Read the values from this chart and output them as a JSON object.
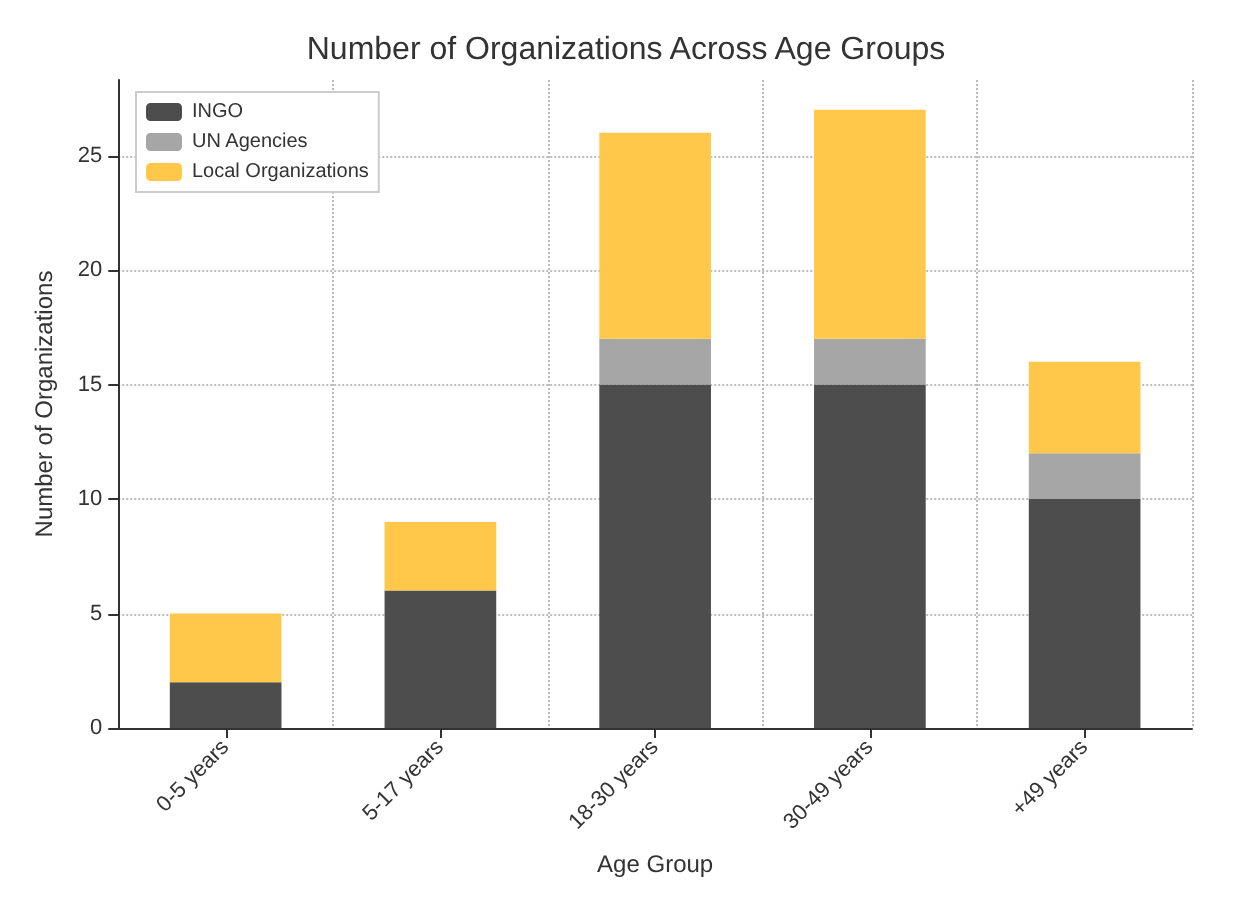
{
  "chart_data": {
    "type": "bar",
    "title": "Number of Organizations Across Age Groups",
    "xlabel": "Age Group",
    "ylabel": "Number of Organizations",
    "categories": [
      "0-5 years",
      "5-17 years",
      "18-30 years",
      "30-49 years",
      "+49 years"
    ],
    "stacked": true,
    "series": [
      {
        "name": "INGO",
        "color": "#4d4d4d",
        "values": [
          2,
          6,
          15,
          15,
          10
        ]
      },
      {
        "name": "UN Agencies",
        "color": "#a6a6a6",
        "values": [
          0,
          0,
          2,
          2,
          2
        ]
      },
      {
        "name": "Local Organizations",
        "color": "#ffc84a",
        "values": [
          3,
          3,
          9,
          10,
          4
        ]
      }
    ],
    "ylim": [
      0,
      28.3
    ],
    "yticks": [
      0,
      5,
      10,
      15,
      20,
      25
    ],
    "grid": true,
    "legend": "top left"
  }
}
